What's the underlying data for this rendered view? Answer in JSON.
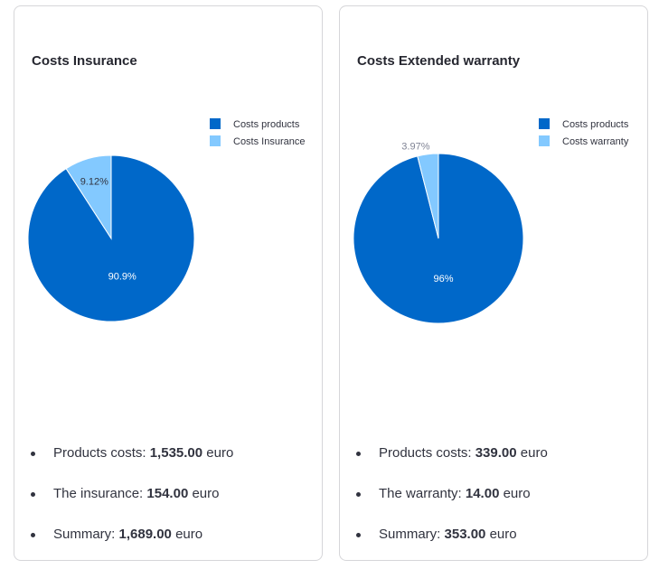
{
  "cards": [
    {
      "title": "Costs Insurance",
      "stats": [
        {
          "label": "Products costs:",
          "value": "1,535.00",
          "unit": "euro"
        },
        {
          "label": "The insurance:",
          "value": "154.00",
          "unit": "euro"
        },
        {
          "label": "Summary:",
          "value": "1,689.00",
          "unit": "euro"
        }
      ]
    },
    {
      "title": "Costs Extended warranty",
      "stats": [
        {
          "label": "Products costs:",
          "value": "339.00",
          "unit": "euro"
        },
        {
          "label": "The warranty:",
          "value": "14.00",
          "unit": "euro"
        },
        {
          "label": "Summary:",
          "value": "353.00",
          "unit": "euro"
        }
      ]
    }
  ],
  "chart_data": [
    {
      "type": "pie",
      "title": "Costs Insurance",
      "legend_position": "top-right",
      "series": [
        {
          "name": "Costs products",
          "value": 90.9,
          "label": "90.9%",
          "color": "#0068c9"
        },
        {
          "name": "Costs Insurance",
          "value": 9.12,
          "label": "9.12%",
          "color": "#83c9ff"
        }
      ]
    },
    {
      "type": "pie",
      "title": "Costs Extended warranty",
      "legend_position": "top-right",
      "series": [
        {
          "name": "Costs products",
          "value": 96,
          "label": "96%",
          "color": "#0068c9"
        },
        {
          "name": "Costs warranty",
          "value": 3.97,
          "label": "3.97%",
          "color": "#83c9ff"
        }
      ]
    }
  ]
}
